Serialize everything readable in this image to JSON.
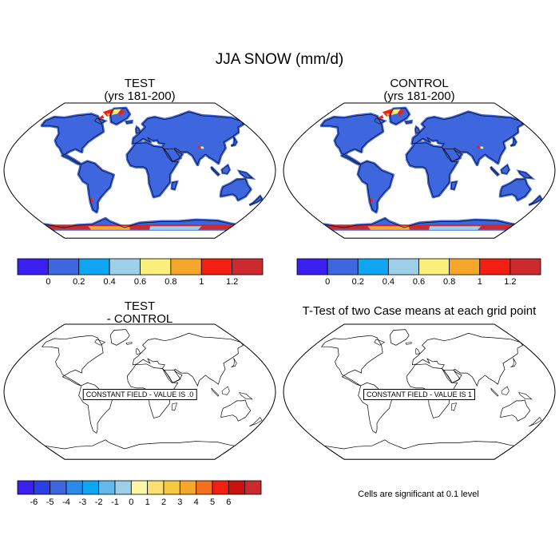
{
  "title": "JJA SNOW (mm/d)",
  "panels": {
    "test": {
      "title": "TEST",
      "subtitle": "(yrs 181-200)"
    },
    "control": {
      "title": "CONTROL",
      "subtitle": "(yrs 181-200)"
    },
    "diff": {
      "title": "TEST",
      "subtitle": "- CONTROL",
      "message": "CONSTANT FIELD - VALUE IS .0"
    },
    "ttest": {
      "title": "T-Test of two Case means at each grid point",
      "message": "CONSTANT FIELD - VALUE IS 1"
    }
  },
  "colorbar_top": {
    "colors": [
      "#3a1ff0",
      "#3d66df",
      "#0ea5f2",
      "#9dcfe9",
      "#f9ef7a",
      "#f6a62b",
      "#f21f12",
      "#cc2a2f"
    ],
    "labels": [
      "0",
      "0.2",
      "0.4",
      "0.6",
      "0.8",
      "1",
      "1.2"
    ]
  },
  "colorbar_bottom": {
    "colors": [
      "#3a1ff0",
      "#2a3fe5",
      "#3d66df",
      "#2a8ae8",
      "#0ea5f2",
      "#64b9ec",
      "#9dcfe9",
      "#fbf6a6",
      "#f9e070",
      "#f8c840",
      "#f6a62b",
      "#f5701e",
      "#f21f12",
      "#c9120d",
      "#cc2a2f"
    ],
    "labels": [
      "-6",
      "-5",
      "-4",
      "-3",
      "-2",
      "-1",
      "0",
      "1",
      "2",
      "3",
      "4",
      "5",
      "6"
    ]
  },
  "significance_note": "Cells are significant at 0.1 level",
  "map_colors": {
    "land_fill": "#3d66df",
    "outline": "#000000",
    "hot_red": "#f21f12",
    "hot_orange": "#f6a62b",
    "hot_yellow": "#f9ef7a",
    "dark_red": "#cc2a2f"
  }
}
